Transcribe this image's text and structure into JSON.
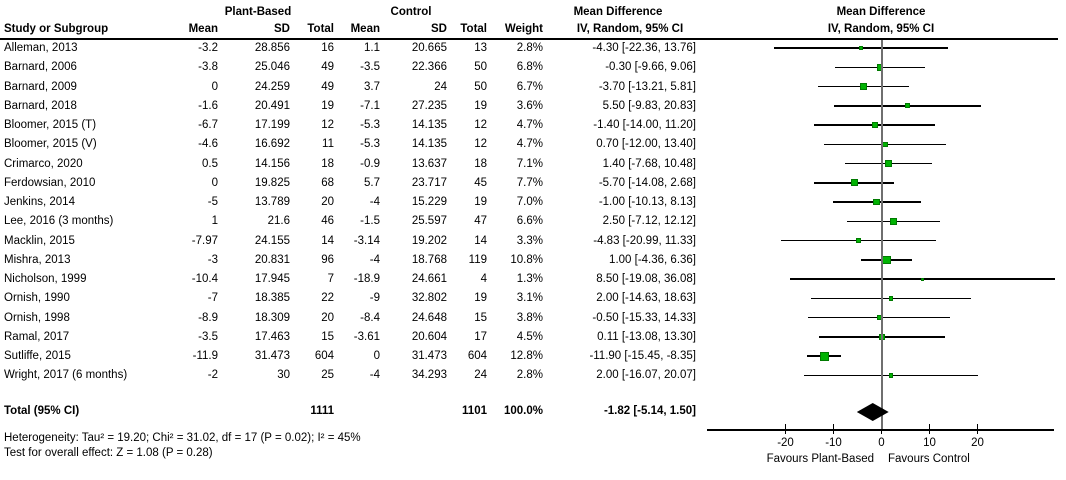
{
  "header": {
    "study_col": "Study or Subgroup",
    "group_pb": "Plant-Based",
    "group_ctrl": "Control",
    "col_mean": "Mean",
    "col_sd": "SD",
    "col_total": "Total",
    "col_weight": "Weight",
    "md_title": "Mean Difference",
    "md_sub": "IV, Random, 95% CI"
  },
  "chart_data": {
    "type": "forest",
    "effect_measure": "Mean Difference",
    "model": "IV, Random, 95% CI",
    "axis": {
      "tick_values": [
        -20,
        -10,
        0,
        10,
        20
      ],
      "tick_labels": [
        "-20",
        "-10",
        "0",
        "10",
        "20"
      ],
      "xlim": [
        -36.4,
        35.9
      ],
      "favours_left": "Favours Plant-Based",
      "favours_right": "Favours Control"
    },
    "studies": [
      {
        "name": "Alleman, 2013",
        "pb_mean": "-3.2",
        "pb_sd": "28.856",
        "pb_total": "16",
        "c_mean": "1.1",
        "c_sd": "20.665",
        "c_total": "13",
        "weight": "2.8%",
        "ci_label": "-4.30 [-22.36, 13.76]",
        "md": -4.3,
        "lo": -22.36,
        "hi": 13.76,
        "w": 2.8
      },
      {
        "name": "Barnard, 2006",
        "pb_mean": "-3.8",
        "pb_sd": "25.046",
        "pb_total": "49",
        "c_mean": "-3.5",
        "c_sd": "22.366",
        "c_total": "50",
        "weight": "6.8%",
        "ci_label": "-0.30 [-9.66, 9.06]",
        "md": -0.3,
        "lo": -9.66,
        "hi": 9.06,
        "w": 6.8
      },
      {
        "name": "Barnard, 2009",
        "pb_mean": "0",
        "pb_sd": "24.259",
        "pb_total": "49",
        "c_mean": "3.7",
        "c_sd": "24",
        "c_total": "50",
        "weight": "6.7%",
        "ci_label": "-3.70 [-13.21, 5.81]",
        "md": -3.7,
        "lo": -13.21,
        "hi": 5.81,
        "w": 6.7
      },
      {
        "name": "Barnard, 2018",
        "pb_mean": "-1.6",
        "pb_sd": "20.491",
        "pb_total": "19",
        "c_mean": "-7.1",
        "c_sd": "27.235",
        "c_total": "19",
        "weight": "3.6%",
        "ci_label": "5.50 [-9.83, 20.83]",
        "md": 5.5,
        "lo": -9.83,
        "hi": 20.83,
        "w": 3.6
      },
      {
        "name": "Bloomer, 2015 (T)",
        "pb_mean": "-6.7",
        "pb_sd": "17.199",
        "pb_total": "12",
        "c_mean": "-5.3",
        "c_sd": "14.135",
        "c_total": "12",
        "weight": "4.7%",
        "ci_label": "-1.40 [-14.00, 11.20]",
        "md": -1.4,
        "lo": -14.0,
        "hi": 11.2,
        "w": 4.7
      },
      {
        "name": "Bloomer, 2015 (V)",
        "pb_mean": "-4.6",
        "pb_sd": "16.692",
        "pb_total": "11",
        "c_mean": "-5.3",
        "c_sd": "14.135",
        "c_total": "12",
        "weight": "4.7%",
        "ci_label": "0.70 [-12.00, 13.40]",
        "md": 0.7,
        "lo": -12.0,
        "hi": 13.4,
        "w": 4.7
      },
      {
        "name": "Crimarco, 2020",
        "pb_mean": "0.5",
        "pb_sd": "14.156",
        "pb_total": "18",
        "c_mean": "-0.9",
        "c_sd": "13.637",
        "c_total": "18",
        "weight": "7.1%",
        "ci_label": "1.40 [-7.68, 10.48]",
        "md": 1.4,
        "lo": -7.68,
        "hi": 10.48,
        "w": 7.1
      },
      {
        "name": "Ferdowsian, 2010",
        "pb_mean": "0",
        "pb_sd": "19.825",
        "pb_total": "68",
        "c_mean": "5.7",
        "c_sd": "23.717",
        "c_total": "45",
        "weight": "7.7%",
        "ci_label": "-5.70 [-14.08, 2.68]",
        "md": -5.7,
        "lo": -14.08,
        "hi": 2.68,
        "w": 7.7
      },
      {
        "name": "Jenkins, 2014",
        "pb_mean": "-5",
        "pb_sd": "13.789",
        "pb_total": "20",
        "c_mean": "-4",
        "c_sd": "15.229",
        "c_total": "19",
        "weight": "7.0%",
        "ci_label": "-1.00 [-10.13, 8.13]",
        "md": -1.0,
        "lo": -10.13,
        "hi": 8.13,
        "w": 7.0
      },
      {
        "name": "Lee, 2016 (3 months)",
        "pb_mean": "1",
        "pb_sd": "21.6",
        "pb_total": "46",
        "c_mean": "-1.5",
        "c_sd": "25.597",
        "c_total": "47",
        "weight": "6.6%",
        "ci_label": "2.50 [-7.12, 12.12]",
        "md": 2.5,
        "lo": -7.12,
        "hi": 12.12,
        "w": 6.6
      },
      {
        "name": "Macklin, 2015",
        "pb_mean": "-7.97",
        "pb_sd": "24.155",
        "pb_total": "14",
        "c_mean": "-3.14",
        "c_sd": "19.202",
        "c_total": "14",
        "weight": "3.3%",
        "ci_label": "-4.83 [-20.99, 11.33]",
        "md": -4.83,
        "lo": -20.99,
        "hi": 11.33,
        "w": 3.3
      },
      {
        "name": "Mishra, 2013",
        "pb_mean": "-3",
        "pb_sd": "20.831",
        "pb_total": "96",
        "c_mean": "-4",
        "c_sd": "18.768",
        "c_total": "119",
        "weight": "10.8%",
        "ci_label": "1.00 [-4.36, 6.36]",
        "md": 1.0,
        "lo": -4.36,
        "hi": 6.36,
        "w": 10.8
      },
      {
        "name": "Nicholson, 1999",
        "pb_mean": "-10.4",
        "pb_sd": "17.945",
        "pb_total": "7",
        "c_mean": "-18.9",
        "c_sd": "24.661",
        "c_total": "4",
        "weight": "1.3%",
        "ci_label": "8.50 [-19.08, 36.08]",
        "md": 8.5,
        "lo": -19.08,
        "hi": 36.08,
        "w": 1.3
      },
      {
        "name": "Ornish, 1990",
        "pb_mean": "-7",
        "pb_sd": "18.385",
        "pb_total": "22",
        "c_mean": "-9",
        "c_sd": "32.802",
        "c_total": "19",
        "weight": "3.1%",
        "ci_label": "2.00 [-14.63, 18.63]",
        "md": 2.0,
        "lo": -14.63,
        "hi": 18.63,
        "w": 3.1
      },
      {
        "name": "Ornish, 1998",
        "pb_mean": "-8.9",
        "pb_sd": "18.309",
        "pb_total": "20",
        "c_mean": "-8.4",
        "c_sd": "24.648",
        "c_total": "15",
        "weight": "3.8%",
        "ci_label": "-0.50 [-15.33, 14.33]",
        "md": -0.5,
        "lo": -15.33,
        "hi": 14.33,
        "w": 3.8
      },
      {
        "name": "Ramal, 2017",
        "pb_mean": "-3.5",
        "pb_sd": "17.463",
        "pb_total": "15",
        "c_mean": "-3.61",
        "c_sd": "20.604",
        "c_total": "17",
        "weight": "4.5%",
        "ci_label": "0.11 [-13.08, 13.30]",
        "md": 0.11,
        "lo": -13.08,
        "hi": 13.3,
        "w": 4.5
      },
      {
        "name": "Sutliffe, 2015",
        "pb_mean": "-11.9",
        "pb_sd": "31.473",
        "pb_total": "604",
        "c_mean": "0",
        "c_sd": "31.473",
        "c_total": "604",
        "weight": "12.8%",
        "ci_label": "-11.90 [-15.45, -8.35]",
        "md": -11.9,
        "lo": -15.45,
        "hi": -8.35,
        "w": 12.8
      },
      {
        "name": "Wright, 2017 (6 months)",
        "pb_mean": "-2",
        "pb_sd": "30",
        "pb_total": "25",
        "c_mean": "-4",
        "c_sd": "34.293",
        "c_total": "24",
        "weight": "2.8%",
        "ci_label": "2.00 [-16.07, 20.07]",
        "md": 2.0,
        "lo": -16.07,
        "hi": 20.07,
        "w": 2.8
      }
    ],
    "total": {
      "label": "Total (95% CI)",
      "pb_total": "1111",
      "c_total": "1101",
      "weight": "100.0%",
      "ci_label": "-1.82 [-5.14, 1.50]",
      "md": -1.82,
      "lo": -5.14,
      "hi": 1.5
    },
    "heterogeneity": "Heterogeneity: Tau² = 19.20; Chi² = 31.02, df = 17 (P = 0.02); I² = 45%",
    "overall_effect": "Test for overall effect: Z = 1.08 (P = 0.28)"
  },
  "colors": {
    "square": "#00b302",
    "square_border": "#007a00",
    "diamond": "#000000",
    "zero_line": "#6f6f6f",
    "ci_line": "#000000"
  }
}
